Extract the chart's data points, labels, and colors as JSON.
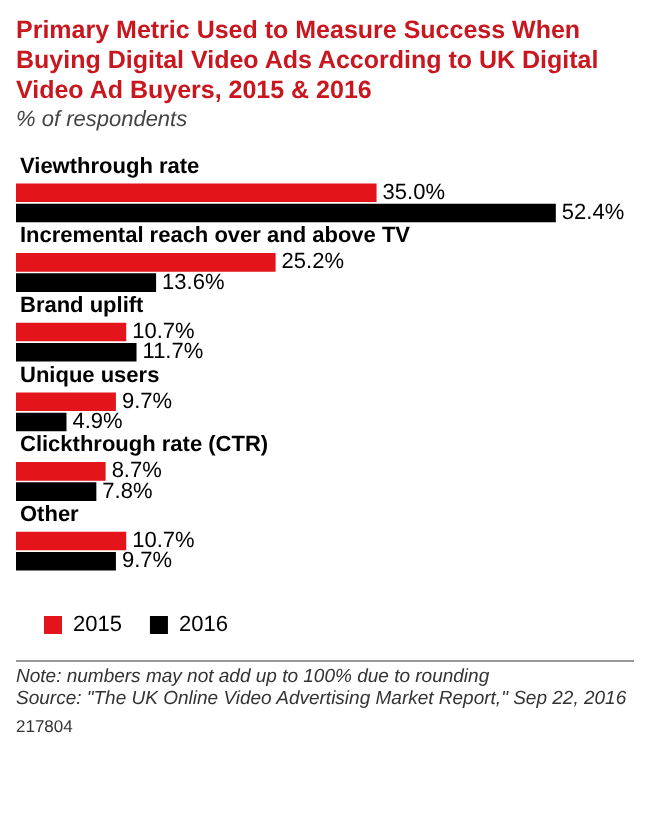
{
  "chart_data": {
    "type": "bar",
    "orientation": "horizontal",
    "title": "Primary Metric Used to Measure Success When Buying Digital Video Ads According to UK Digital Video Ad Buyers, 2015 & 2016",
    "subtitle": "% of respondents",
    "categories": [
      "Viewthrough rate",
      "Incremental reach over and above TV",
      "Brand uplift",
      "Unique users",
      "Clickthrough rate (CTR)",
      "Other"
    ],
    "series": [
      {
        "name": "2015",
        "color": "#e3151a",
        "values": [
          35.0,
          25.2,
          10.7,
          9.7,
          8.7,
          10.7
        ],
        "value_labels": [
          "35.0%",
          "25.2%",
          "10.7%",
          "9.7%",
          "8.7%",
          "10.7%"
        ]
      },
      {
        "name": "2016",
        "color": "#000000",
        "values": [
          52.4,
          13.6,
          11.7,
          4.9,
          7.8,
          9.7
        ],
        "value_labels": [
          "52.4%",
          "13.6%",
          "11.7%",
          "4.9%",
          "7.8%",
          "9.7%"
        ]
      }
    ],
    "legend": "bottom",
    "annotations": [
      "Note: numbers may not add up to 100% due to rounding",
      "Source: \"The UK Online Video Advertising Market Report,\" Sep 22, 2016",
      "217804"
    ]
  }
}
